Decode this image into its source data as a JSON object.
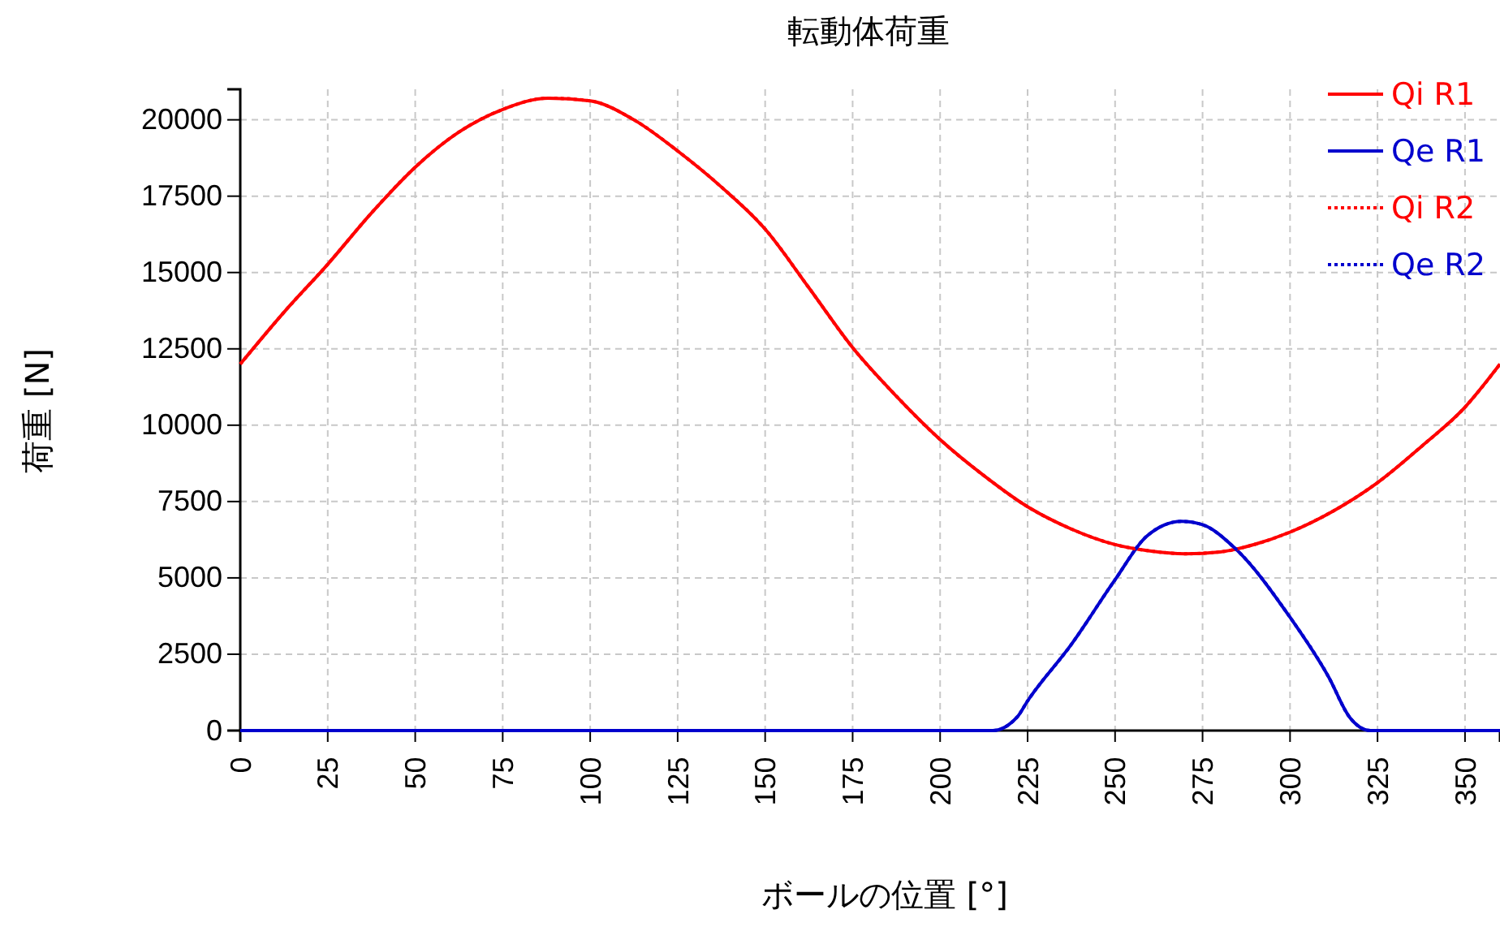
{
  "chart_data": {
    "type": "line",
    "title": "転動体荷重",
    "xlabel": "ボールの位置 [°]",
    "ylabel": "荷重 [N]",
    "xlim": [
      0,
      360
    ],
    "xticks": [
      0,
      25,
      50,
      75,
      100,
      125,
      150,
      175,
      200,
      225,
      250,
      275,
      300,
      325,
      350
    ],
    "ylim": [
      0,
      21000
    ],
    "yticks": [
      0,
      2500,
      5000,
      7500,
      10000,
      12500,
      15000,
      17500,
      20000
    ],
    "grid": true,
    "legend": "top right",
    "marker": "none",
    "series": [
      {
        "name": "Qi R1",
        "color": "#ff0000",
        "line_style": "solid",
        "x": [
          0,
          12.5,
          25,
          37.5,
          50,
          62.5,
          75,
          88,
          100,
          112.5,
          125,
          137.5,
          150,
          162.5,
          175,
          187.5,
          200,
          212.5,
          225,
          237.5,
          250,
          260,
          270,
          280,
          290,
          300,
          312.5,
          325,
          337.5,
          350,
          360
        ],
        "values": [
          12000,
          13700,
          15270,
          16950,
          18450,
          19600,
          20340,
          20710,
          20620,
          20000,
          18980,
          17800,
          16420,
          14500,
          12540,
          10950,
          9530,
          8350,
          7330,
          6600,
          6090,
          5880,
          5790,
          5850,
          6100,
          6500,
          7200,
          8120,
          9300,
          10590,
          12000
        ]
      },
      {
        "name": "Qe R1",
        "color": "#0000cd",
        "line_style": "solid",
        "x": [
          0,
          215,
          222,
          225,
          237.5,
          250,
          259,
          269,
          275,
          284,
          300,
          311,
          317,
          323,
          360
        ],
        "values": [
          0,
          0,
          440,
          970,
          2820,
          4940,
          6360,
          6850,
          6740,
          6000,
          3710,
          1760,
          440,
          0,
          0
        ]
      },
      {
        "name": "Qi R2",
        "color": "#ff0000",
        "line_style": "dotted",
        "x": [
          0,
          12.5,
          25,
          37.5,
          50,
          62.5,
          75,
          88,
          100,
          112.5,
          125,
          137.5,
          150,
          162.5,
          175,
          187.5,
          200,
          212.5,
          225,
          237.5,
          250,
          260,
          270,
          280,
          290,
          300,
          312.5,
          325,
          337.5,
          350,
          360
        ],
        "values": [
          12000,
          13700,
          15270,
          16950,
          18450,
          19600,
          20340,
          20710,
          20620,
          20000,
          18980,
          17800,
          16420,
          14500,
          12540,
          10950,
          9530,
          8350,
          7330,
          6600,
          6090,
          5880,
          5790,
          5850,
          6100,
          6500,
          7200,
          8120,
          9300,
          10590,
          12000
        ]
      },
      {
        "name": "Qe R2",
        "color": "#0000cd",
        "line_style": "dotted",
        "x": [
          0,
          215,
          222,
          225,
          237.5,
          250,
          259,
          269,
          275,
          284,
          300,
          311,
          317,
          323,
          360
        ],
        "values": [
          0,
          0,
          440,
          970,
          2820,
          4940,
          6360,
          6850,
          6740,
          6000,
          3710,
          1760,
          440,
          0,
          0
        ]
      }
    ]
  }
}
